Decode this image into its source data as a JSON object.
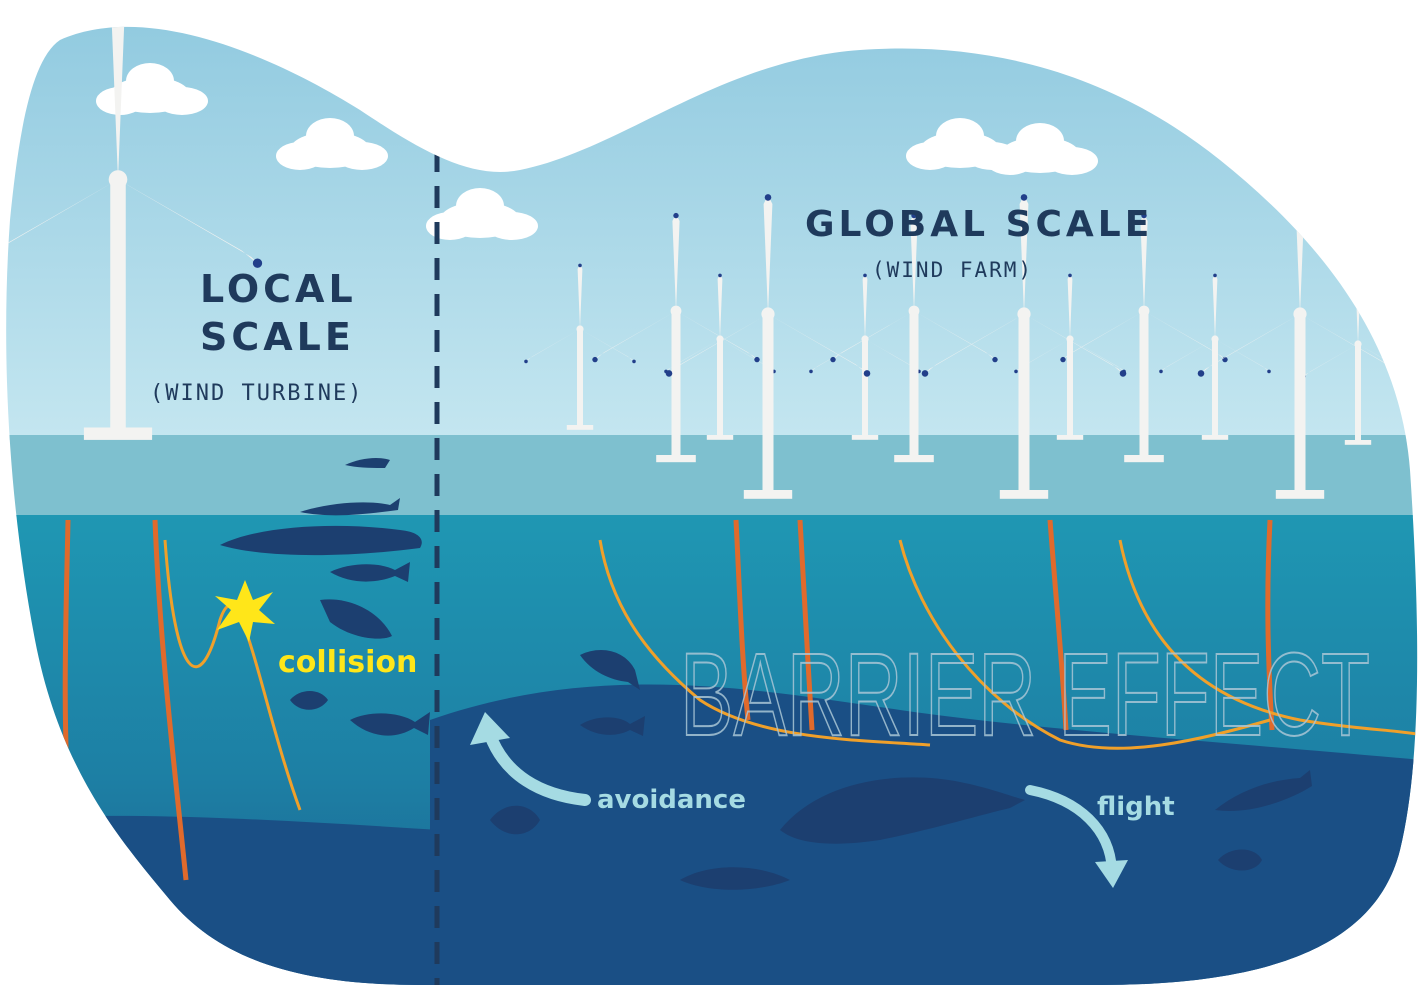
{
  "local": {
    "line1": "LOCAL",
    "line2": "SCALE",
    "subtitle": "(WIND TURBINE)"
  },
  "global": {
    "title": "GLOBAL SCALE",
    "subtitle": "(WIND FARM)"
  },
  "effects": {
    "barrier": "BARRIER EFFECT",
    "collision": "collision",
    "avoidance": "avoidance",
    "flight": "flight"
  },
  "colors": {
    "sky": "#a9d6e6",
    "sea_surface": "#7ec0cf",
    "water": "#1b8aa8",
    "deep": "#1b4f82",
    "text_dark": "#1f3a5c",
    "cable": "#e06a2c",
    "wire": "#f0a02a",
    "spark": "#ffe619",
    "arrow": "#a5dbe3"
  },
  "icons": [
    "wind-turbine-icon",
    "cloud-icon",
    "whale-icon",
    "dolphin-icon",
    "fish-icon",
    "seal-icon",
    "turtle-icon",
    "collision-spark-icon"
  ]
}
